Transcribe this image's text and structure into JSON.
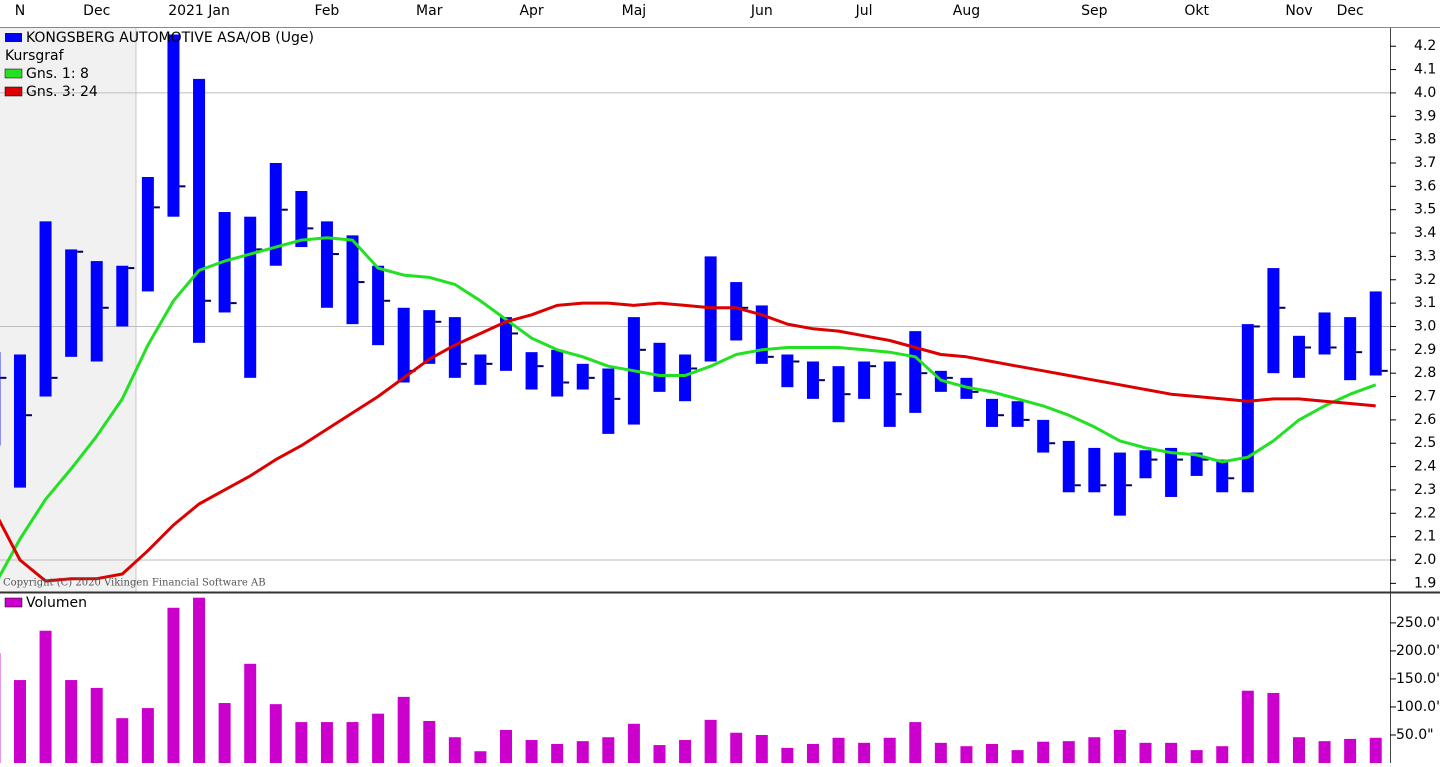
{
  "chart_data": [
    {
      "type": "ohlc",
      "title": "KONGSBERG AUTOMOTIVE ASA/OB (Uge)",
      "subtitle": "Kursgraf",
      "copyright": "Copyright (C) 2020 Vikingen Financial Software AB",
      "color": "#0000ff",
      "categories": [
        null,
        "N",
        null,
        null,
        "Dec",
        null,
        null,
        null,
        "2021 Jan",
        null,
        null,
        null,
        null,
        "Feb",
        null,
        null,
        null,
        "Mar",
        null,
        null,
        null,
        "Apr",
        null,
        null,
        null,
        "Maj",
        null,
        null,
        null,
        null,
        "Jun",
        null,
        null,
        null,
        "Jul",
        null,
        null,
        null,
        "Aug",
        null,
        null,
        null,
        null,
        "Sep",
        null,
        null,
        null,
        "Okt",
        null,
        null,
        null,
        "Nov",
        null,
        "Dec",
        null
      ],
      "high": [
        2.89,
        2.88,
        3.45,
        3.33,
        3.28,
        3.26,
        3.64,
        4.25,
        4.06,
        3.49,
        3.47,
        3.7,
        3.58,
        3.45,
        3.39,
        3.26,
        3.08,
        3.07,
        3.04,
        2.88,
        3.04,
        2.89,
        2.9,
        2.84,
        2.82,
        3.04,
        2.93,
        2.88,
        3.3,
        3.19,
        3.09,
        2.88,
        2.85,
        2.83,
        2.85,
        2.85,
        2.98,
        2.81,
        2.78,
        2.69,
        2.68,
        2.6,
        2.51,
        2.48,
        2.46,
        2.47,
        2.48,
        2.46,
        2.43,
        3.01,
        3.25,
        2.96,
        3.06,
        3.04,
        3.15
      ],
      "low": [
        2.49,
        2.31,
        2.7,
        2.87,
        2.85,
        3.0,
        3.15,
        3.47,
        2.93,
        3.06,
        2.78,
        3.26,
        3.34,
        3.08,
        3.01,
        2.92,
        2.76,
        2.84,
        2.78,
        2.75,
        2.81,
        2.73,
        2.7,
        2.73,
        2.54,
        2.58,
        2.72,
        2.68,
        2.85,
        2.94,
        2.84,
        2.74,
        2.69,
        2.59,
        2.69,
        2.57,
        2.63,
        2.72,
        2.69,
        2.57,
        2.57,
        2.46,
        2.29,
        2.29,
        2.19,
        2.35,
        2.27,
        2.36,
        2.29,
        2.29,
        2.8,
        2.78,
        2.88,
        2.77,
        2.79
      ],
      "close": [
        2.78,
        2.62,
        2.78,
        3.32,
        3.08,
        3.25,
        3.51,
        3.6,
        3.11,
        3.1,
        3.33,
        3.5,
        3.42,
        3.31,
        3.19,
        3.11,
        2.81,
        3.02,
        2.84,
        2.84,
        2.97,
        2.83,
        2.76,
        2.78,
        2.69,
        2.9,
        2.79,
        2.82,
        3.08,
        3.08,
        2.87,
        2.85,
        2.77,
        2.71,
        2.83,
        2.71,
        2.8,
        2.78,
        2.72,
        2.62,
        2.6,
        2.5,
        2.32,
        2.32,
        2.32,
        2.43,
        2.43,
        2.43,
        2.35,
        3.0,
        3.08,
        2.91,
        2.91,
        2.89,
        2.81
      ],
      "series": [
        {
          "name": "Gns. 1: 8",
          "color": "#22e022",
          "values": [
            1.89,
            2.09,
            2.26,
            2.39,
            2.53,
            2.69,
            2.92,
            3.11,
            3.24,
            3.28,
            3.31,
            3.34,
            3.37,
            3.38,
            3.37,
            3.25,
            3.22,
            3.21,
            3.18,
            3.11,
            3.03,
            2.95,
            2.9,
            2.87,
            2.83,
            2.81,
            2.79,
            2.79,
            2.83,
            2.88,
            2.9,
            2.91,
            2.91,
            2.91,
            2.9,
            2.89,
            2.87,
            2.77,
            2.74,
            2.72,
            2.69,
            2.66,
            2.62,
            2.57,
            2.51,
            2.48,
            2.46,
            2.45,
            2.42,
            2.44,
            2.51,
            2.6,
            2.66,
            2.71,
            2.75
          ]
        },
        {
          "name": "Gns. 3: 24",
          "color": "#dd0000",
          "values": [
            2.21,
            2.0,
            1.91,
            1.92,
            1.92,
            1.94,
            2.04,
            2.15,
            2.24,
            2.3,
            2.36,
            2.43,
            2.49,
            2.56,
            2.63,
            2.7,
            2.78,
            2.86,
            2.92,
            2.97,
            3.02,
            3.05,
            3.09,
            3.1,
            3.1,
            3.09,
            3.1,
            3.09,
            3.08,
            3.08,
            3.05,
            3.01,
            2.99,
            2.98,
            2.96,
            2.94,
            2.91,
            2.88,
            2.87,
            2.85,
            2.83,
            2.81,
            2.79,
            2.77,
            2.75,
            2.73,
            2.71,
            2.7,
            2.69,
            2.68,
            2.69,
            2.69,
            2.68,
            2.67,
            2.66
          ]
        }
      ],
      "ylim": [
        1.863,
        4.278
      ],
      "yticks": [
        1.9,
        {
          "value": 2,
          "label": "2.0"
        },
        2.1,
        2.2,
        2.3,
        2.4,
        2.5,
        2.6,
        2.7,
        2.8,
        2.9,
        {
          "value": 3,
          "label": "3.0"
        },
        3.1,
        3.2,
        3.3,
        3.4,
        3.5,
        3.6,
        3.7,
        3.8,
        3.9,
        {
          "value": 4,
          "label": "4.0"
        },
        4.1,
        4.2
      ],
      "grid": true
    },
    {
      "type": "bar",
      "title": "Volumen",
      "color": "#cc00cc",
      "values": [
        196,
        148,
        236,
        148,
        134,
        80,
        98,
        277,
        295,
        107,
        177,
        105,
        73,
        73,
        73,
        88,
        118,
        75,
        46,
        21,
        59,
        41,
        34,
        39,
        46,
        70,
        32,
        41,
        77,
        54,
        50,
        27,
        34,
        45,
        36,
        45,
        73,
        36,
        30,
        34,
        23,
        38,
        39,
        46,
        59,
        36,
        36,
        23,
        30,
        129,
        125,
        46,
        39,
        43,
        45
      ],
      "ylim": [
        0,
        298
      ],
      "yticks": [
        {
          "value": 50,
          "label": "50.0\""
        },
        {
          "value": 100,
          "label": "100.0\""
        },
        {
          "value": 150,
          "label": "150.0\""
        },
        {
          "value": 200,
          "label": "200.0\""
        },
        {
          "value": 250,
          "label": "250.0\""
        }
      ]
    }
  ]
}
